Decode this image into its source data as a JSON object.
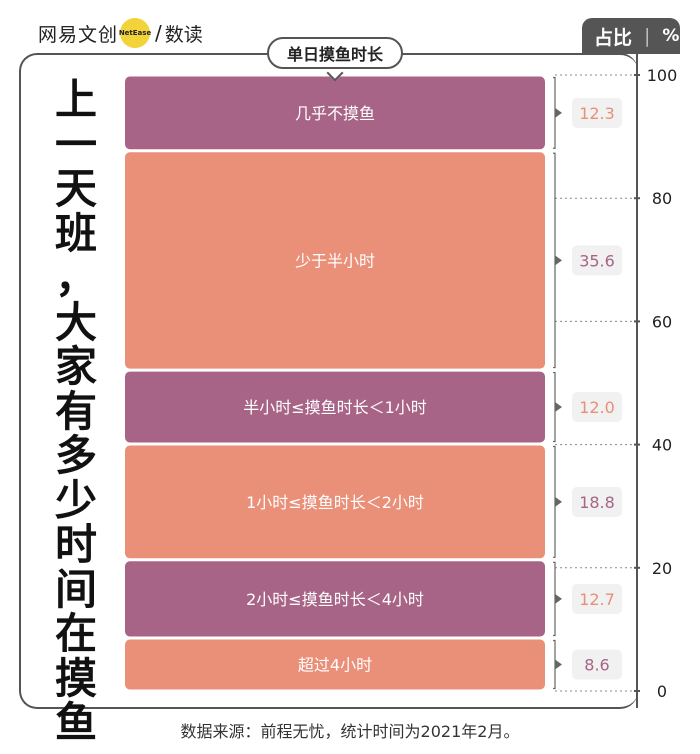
{
  "brand": {
    "name": "网易文创",
    "badge": "NetEase",
    "sub": "数读"
  },
  "unit": {
    "label": "占比",
    "symbol": "%"
  },
  "vertical_title": "上一天班，大家有多少时间在摸鱼",
  "footer": "数据来源：前程无忧，统计时间为2021年2月。",
  "colors": {
    "purple": "#a86486",
    "salmon": "#ea8f78",
    "purple_text": "#a86486",
    "salmon_text": "#ea8f78",
    "badge_bg": "#f1f1f1"
  },
  "chart_data": {
    "type": "bar",
    "stacked": true,
    "title": "单日摸鱼时长",
    "ylabel": "占比 %",
    "ylim": [
      0,
      100
    ],
    "yticks": [
      0,
      20,
      40,
      60,
      80,
      100
    ],
    "categories": [
      "超过4小时",
      "2小时≤摸鱼时长＜4小时",
      "1小时≤摸鱼时长＜2小时",
      "半小时≤摸鱼时长＜1小时",
      "少于半小时",
      "几乎不摸鱼"
    ],
    "values": [
      8.6,
      12.7,
      18.8,
      12.0,
      35.6,
      12.3
    ],
    "value_labels": [
      "8.6",
      "12.7",
      "18.8",
      "12.0",
      "35.6",
      "12.3"
    ]
  }
}
